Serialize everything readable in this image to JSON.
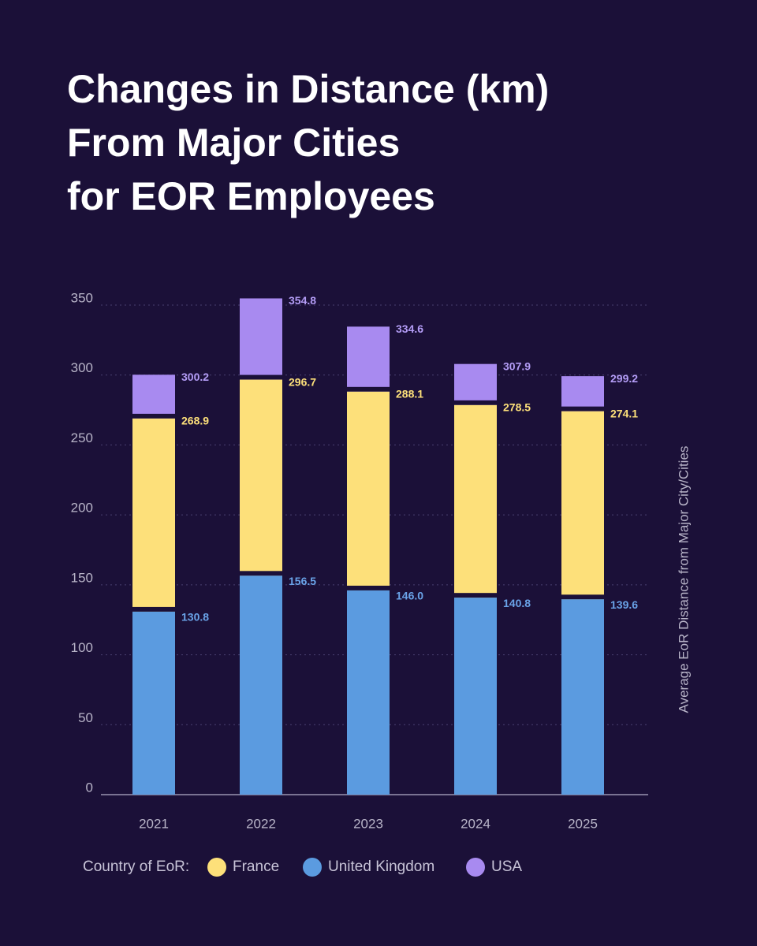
{
  "chart_data": {
    "type": "bar",
    "title": [
      "Changes in Distance (km)",
      "From Major Cities",
      "for EOR Employees"
    ],
    "y_label": "Average EoR Distance from Major City/Cities",
    "legend_title": "Country of EoR:",
    "categories": [
      "2021",
      "2022",
      "2023",
      "2024",
      "2025"
    ],
    "series": [
      {
        "name": "France",
        "color": "#fde07a",
        "values": [
          268.9,
          296.7,
          288.1,
          278.5,
          274.1
        ]
      },
      {
        "name": "United Kingdom",
        "color": "#5b9be0",
        "values": [
          130.8,
          156.5,
          146.0,
          140.8,
          139.6
        ],
        "value_labels": [
          "130.8",
          "156.5",
          "146.0",
          "140.8",
          "139.6"
        ]
      },
      {
        "name": "USA",
        "color": "#a88af0",
        "values": [
          300.2,
          354.8,
          334.6,
          307.9,
          299.2
        ]
      }
    ],
    "ylim": [
      0,
      350
    ],
    "yticks": [
      0,
      50,
      100,
      150,
      200,
      250,
      300,
      350
    ],
    "grid": true
  }
}
